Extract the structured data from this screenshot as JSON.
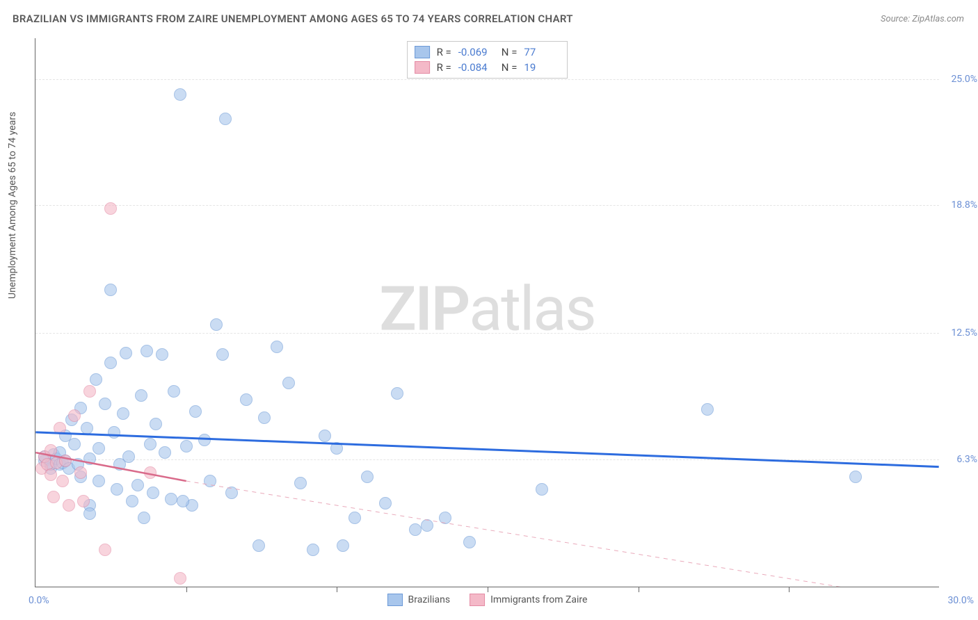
{
  "title": "BRAZILIAN VS IMMIGRANTS FROM ZAIRE UNEMPLOYMENT AMONG AGES 65 TO 74 YEARS CORRELATION CHART",
  "source": "Source: ZipAtlas.com",
  "watermark_a": "ZIP",
  "watermark_b": "atlas",
  "y_axis": {
    "label": "Unemployment Among Ages 65 to 74 years",
    "min": 0,
    "max": 27,
    "ticks": [
      {
        "v": 6.3,
        "label": "6.3%"
      },
      {
        "v": 12.5,
        "label": "12.5%"
      },
      {
        "v": 18.8,
        "label": "18.8%"
      },
      {
        "v": 25.0,
        "label": "25.0%"
      }
    ]
  },
  "x_axis": {
    "min": 0,
    "max": 30,
    "start_label": "0.0%",
    "end_label": "30.0%",
    "tick_positions": [
      5,
      10,
      15,
      20,
      25
    ]
  },
  "series": [
    {
      "name": "Brazilians",
      "fill": "#a8c6ec",
      "stroke": "#6b99d6",
      "fill_opacity": 0.6,
      "marker_radius": 9,
      "R": "-0.069",
      "N": "77",
      "trend": {
        "y_at_xmin": 7.6,
        "y_at_xmax": 5.9,
        "width": 3,
        "dash": "none",
        "color": "#2d6cdf"
      },
      "points": [
        [
          0.3,
          6.2
        ],
        [
          0.3,
          6.4
        ],
        [
          0.5,
          5.8
        ],
        [
          0.5,
          6.0
        ],
        [
          0.6,
          6.5
        ],
        [
          0.7,
          6.3
        ],
        [
          0.8,
          6.0
        ],
        [
          0.8,
          6.6
        ],
        [
          0.9,
          6.1
        ],
        [
          1.0,
          7.4
        ],
        [
          1.0,
          6.2
        ],
        [
          1.1,
          5.8
        ],
        [
          1.2,
          8.2
        ],
        [
          1.3,
          7.0
        ],
        [
          1.4,
          6.0
        ],
        [
          1.5,
          5.4
        ],
        [
          1.5,
          8.8
        ],
        [
          1.7,
          7.8
        ],
        [
          1.8,
          6.3
        ],
        [
          1.8,
          4.0
        ],
        [
          1.8,
          3.6
        ],
        [
          2.0,
          10.2
        ],
        [
          2.1,
          6.8
        ],
        [
          2.1,
          5.2
        ],
        [
          2.3,
          9.0
        ],
        [
          2.5,
          11.0
        ],
        [
          2.5,
          14.6
        ],
        [
          2.6,
          7.6
        ],
        [
          2.7,
          4.8
        ],
        [
          2.8,
          6.0
        ],
        [
          2.9,
          8.5
        ],
        [
          3.0,
          11.5
        ],
        [
          3.1,
          6.4
        ],
        [
          3.2,
          4.2
        ],
        [
          3.4,
          5.0
        ],
        [
          3.5,
          9.4
        ],
        [
          3.6,
          3.4
        ],
        [
          3.7,
          11.6
        ],
        [
          3.8,
          7.0
        ],
        [
          3.9,
          4.6
        ],
        [
          4.0,
          8.0
        ],
        [
          4.2,
          11.4
        ],
        [
          4.3,
          6.6
        ],
        [
          4.5,
          4.3
        ],
        [
          4.6,
          9.6
        ],
        [
          4.8,
          24.2
        ],
        [
          5.0,
          6.9
        ],
        [
          5.2,
          4.0
        ],
        [
          5.3,
          8.6
        ],
        [
          5.6,
          7.2
        ],
        [
          5.8,
          5.2
        ],
        [
          6.0,
          12.9
        ],
        [
          6.2,
          11.4
        ],
        [
          6.3,
          23.0
        ],
        [
          6.5,
          4.6
        ],
        [
          7.0,
          9.2
        ],
        [
          7.4,
          2.0
        ],
        [
          7.6,
          8.3
        ],
        [
          8.0,
          11.8
        ],
        [
          8.4,
          10.0
        ],
        [
          8.8,
          5.1
        ],
        [
          9.2,
          1.8
        ],
        [
          9.6,
          7.4
        ],
        [
          10.0,
          6.8
        ],
        [
          10.2,
          2.0
        ],
        [
          10.6,
          3.4
        ],
        [
          11.0,
          5.4
        ],
        [
          11.6,
          4.1
        ],
        [
          12.0,
          9.5
        ],
        [
          12.6,
          2.8
        ],
        [
          13.0,
          3.0
        ],
        [
          13.6,
          3.4
        ],
        [
          14.4,
          2.2
        ],
        [
          16.8,
          4.8
        ],
        [
          22.3,
          8.7
        ],
        [
          27.2,
          5.4
        ],
        [
          4.9,
          4.2
        ]
      ]
    },
    {
      "name": "Immigrants from Zaire",
      "fill": "#f4b9c8",
      "stroke": "#e48aa4",
      "fill_opacity": 0.6,
      "marker_radius": 9,
      "R": "-0.084",
      "N": "19",
      "trend_solid": {
        "y_at_xmin": 6.6,
        "y_at_x": 5.2,
        "x_end": 5.0,
        "width": 2.5,
        "color": "#d96a8a"
      },
      "trend_dash": {
        "x_start": 5.0,
        "y_start": 5.2,
        "y_at_xmax": -0.8,
        "width": 1,
        "color": "#e9a9ba"
      },
      "points": [
        [
          0.2,
          5.8
        ],
        [
          0.3,
          6.4
        ],
        [
          0.4,
          6.0
        ],
        [
          0.5,
          5.5
        ],
        [
          0.5,
          6.7
        ],
        [
          0.6,
          4.4
        ],
        [
          0.7,
          6.1
        ],
        [
          0.8,
          7.8
        ],
        [
          0.9,
          5.2
        ],
        [
          1.0,
          6.2
        ],
        [
          1.1,
          4.0
        ],
        [
          1.3,
          8.4
        ],
        [
          1.5,
          5.6
        ],
        [
          1.6,
          4.2
        ],
        [
          1.8,
          9.6
        ],
        [
          2.3,
          1.8
        ],
        [
          2.5,
          18.6
        ],
        [
          3.8,
          5.6
        ],
        [
          4.8,
          0.4
        ]
      ]
    }
  ],
  "legend_top": {
    "R_label": "R =",
    "N_label": "N ="
  },
  "colors": {
    "title": "#5a5a5a",
    "source": "#8a8a8a",
    "axis": "#666666",
    "grid": "#e5e5e5",
    "tick_label": "#6b8fd4",
    "watermark": "#dedede",
    "background": "#ffffff"
  }
}
